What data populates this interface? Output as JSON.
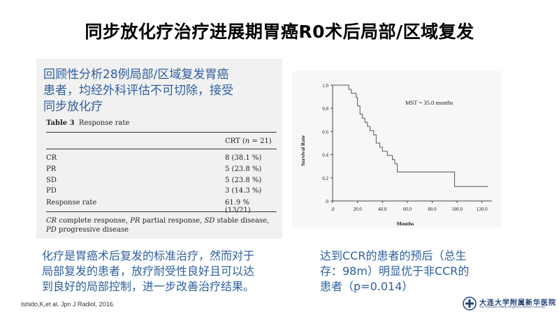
{
  "slide": {
    "title": "同步放化疗治疗进展期胃癌R0术后局部/区域复发",
    "intro_lines": [
      "回顾性分析28例局部/区域复发胃癌",
      "患者，均经外科评估不可切除，接受",
      "同步放化疗"
    ],
    "bottom_left_lines": [
      "化疗是胃癌术后复发的标准治疗，然而对于",
      "局部复发的患者，放疗耐受性良好且可以达",
      "到良好的局部控制，进一步改善治疗结果。"
    ],
    "bottom_right_lines": [
      "达到CCR的患者的预后（总生",
      "存：98m）明显优于非CCR的",
      "患者（p=0.014）"
    ],
    "citation": "Ishido,K,et al. Jpn J  Radiol, 2016.",
    "logo_text": "大连大学附属新华医院",
    "logo_subtext": "The Affiliated Xinhua Hospital of Dalian University"
  },
  "table": {
    "caption_bold": "Table 3",
    "caption_rest": "Response rate",
    "column_header_prefix": "CRT (",
    "column_header_n": "n",
    "column_header_suffix": " = 21)",
    "rows": [
      {
        "label": "CR",
        "value": "8 (38.1 %)"
      },
      {
        "label": "PR",
        "value": "5 (23.8 %)"
      },
      {
        "label": "SD",
        "value": "5 (23.8 %)"
      },
      {
        "label": "PD",
        "value": "3 (14.3 %)"
      },
      {
        "label": "Response rate",
        "value": "61.9 % (13/21)"
      }
    ],
    "note": [
      {
        "abbr": "CR",
        "text": " complete response, "
      },
      {
        "abbr": "PR",
        "text": " partial response, "
      },
      {
        "abbr": "SD",
        "text": " stable disease, "
      },
      {
        "abbr": "PD",
        "text": " progressive disease"
      }
    ]
  },
  "chart_data": {
    "type": "line",
    "step": true,
    "ylabel": "Survival Rate",
    "xlabel": "Months",
    "annotation": "MST = 35.0 months",
    "xlim": [
      0,
      128
    ],
    "ylim": [
      0,
      1.0
    ],
    "xticks": [
      ".0",
      "20.0",
      "40.0",
      "60.0",
      "80.0",
      "100.0",
      "120.0"
    ],
    "xtick_values": [
      0,
      20,
      40,
      60,
      80,
      100,
      120
    ],
    "yticks": [
      ".0",
      "0.2",
      "0.4",
      "0.6",
      "0.8",
      "1.0"
    ],
    "ytick_values": [
      0,
      0.2,
      0.4,
      0.6,
      0.8,
      1.0
    ],
    "steps": [
      [
        0,
        1.0
      ],
      [
        13,
        0.964
      ],
      [
        15,
        0.929
      ],
      [
        19,
        0.893
      ],
      [
        20,
        0.821
      ],
      [
        22,
        0.75
      ],
      [
        24,
        0.714
      ],
      [
        26,
        0.679
      ],
      [
        28,
        0.643
      ],
      [
        30,
        0.607
      ],
      [
        33,
        0.571
      ],
      [
        35,
        0.5
      ],
      [
        38,
        0.464
      ],
      [
        40,
        0.429
      ],
      [
        44,
        0.393
      ],
      [
        48,
        0.357
      ],
      [
        50,
        0.321
      ],
      [
        52,
        0.25
      ],
      [
        98,
        0.125
      ],
      [
        125,
        0.125
      ]
    ]
  }
}
